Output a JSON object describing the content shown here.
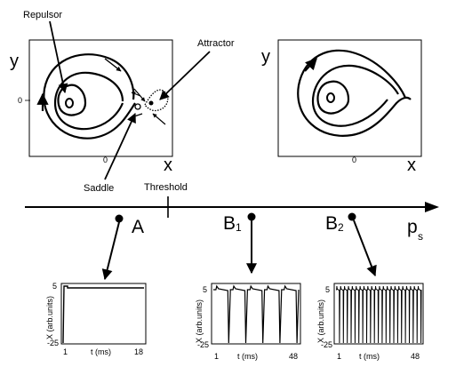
{
  "phase_left": {
    "y_label": "y",
    "x_label": "x",
    "y_zero": "0",
    "x_zero": "0",
    "annotations": {
      "repulsor": "Repulsor",
      "attractor": "Attractor",
      "saddle": "Saddle"
    }
  },
  "phase_right": {
    "y_label": "y",
    "x_label": "x",
    "y_zero": "0",
    "x_zero": "0"
  },
  "parameter_axis": {
    "threshold_label": "Threshold",
    "param_symbol": "p",
    "param_subscript": "s",
    "states": [
      {
        "main": "A",
        "sub": ""
      },
      {
        "main": "B",
        "sub": "1"
      },
      {
        "main": "B",
        "sub": "2"
      }
    ]
  },
  "traces": [
    {
      "id": "A",
      "y_label": "X (arb.units)",
      "x_label": "t (ms)",
      "y_top": "5",
      "y_bottom": "-25",
      "x_start": "1",
      "x_end": "18",
      "spikes": 1
    },
    {
      "id": "B1",
      "y_label": "X (arb.units)",
      "x_label": "t (ms)",
      "y_top": "5",
      "y_bottom": "-25",
      "x_start": "1",
      "x_end": "48",
      "spikes": 5
    },
    {
      "id": "B2",
      "y_label": "X (arb.units)",
      "x_label": "t (ms)",
      "y_top": "5",
      "y_bottom": "-25",
      "x_start": "1",
      "x_end": "48",
      "spikes": 22
    }
  ]
}
